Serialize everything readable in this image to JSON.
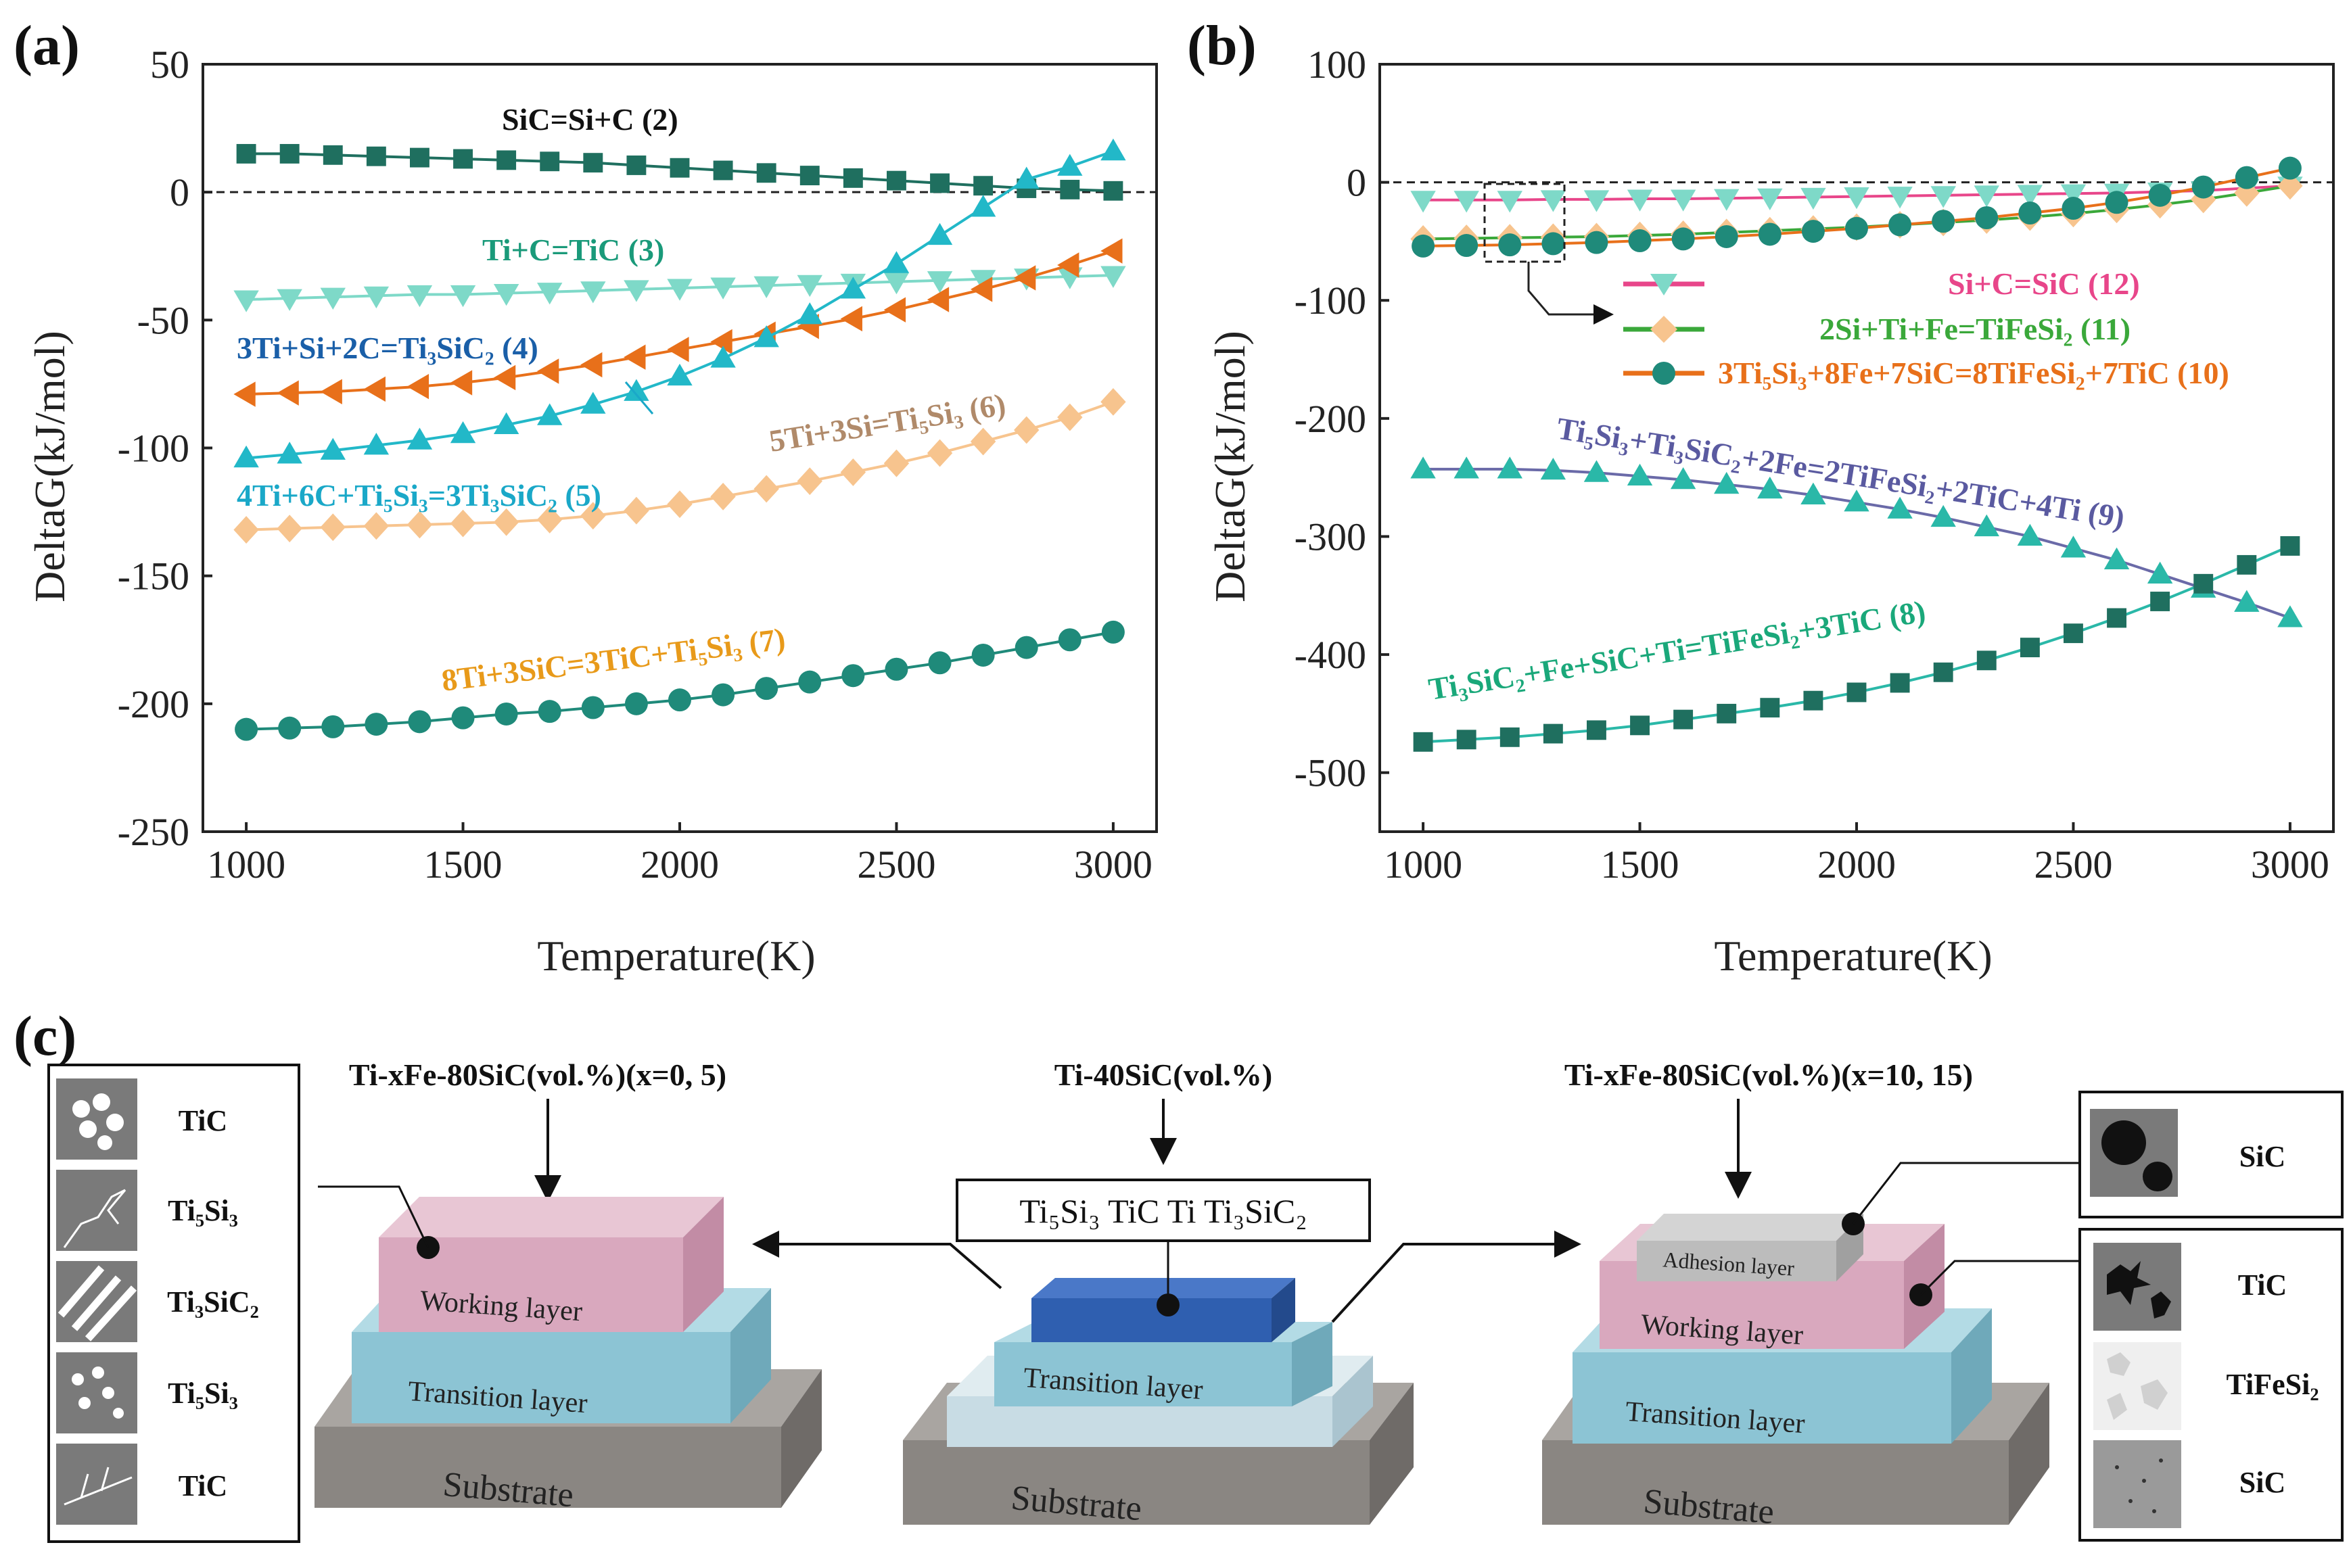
{
  "panels": {
    "a": "(a)",
    "b": "(b)",
    "c": "(c)"
  },
  "chart_data": [
    {
      "type": "line",
      "panel": "(a)",
      "xlabel": "Temperature(K)",
      "ylabel": "DeltaG(kJ/mol)",
      "xlim": [
        900,
        3100
      ],
      "ylim": [
        -250,
        50
      ],
      "xticks": [
        1000,
        1500,
        2000,
        2500,
        3000
      ],
      "yticks": [
        50,
        0,
        -50,
        -100,
        -150,
        -200,
        -250
      ],
      "x": [
        1000,
        1100,
        1200,
        1300,
        1400,
        1500,
        1600,
        1700,
        1800,
        1900,
        2000,
        2100,
        2200,
        2300,
        2400,
        2500,
        2600,
        2700,
        2800,
        2900,
        3000
      ],
      "zero_line": true,
      "series": [
        {
          "name": "SiC=Si+C (2)",
          "color": "#1f6f5f",
          "marker": "square",
          "values": [
            15,
            15,
            14.5,
            14,
            13.5,
            13,
            12.5,
            12,
            11.5,
            10.5,
            9.5,
            8.5,
            7.5,
            6.5,
            5.5,
            4.5,
            3.5,
            2.5,
            1.5,
            1,
            0.5
          ]
        },
        {
          "name": "Ti+C=TiC (3)",
          "color": "#7ed9c8",
          "marker": "triangle-down",
          "values": [
            -42,
            -41.5,
            -41,
            -40.5,
            -40,
            -40,
            -39.5,
            -39,
            -38.5,
            -38,
            -37.5,
            -37,
            -36.5,
            -36,
            -35.5,
            -35,
            -34.5,
            -34,
            -33.5,
            -33,
            -32.5
          ]
        },
        {
          "name": "3Ti+Si+2C=Ti₃SiC₂ (4)",
          "color": "#e8701a",
          "marker": "triangle-left",
          "values": [
            -79,
            -78.5,
            -78,
            -77,
            -76,
            -74.5,
            -72.5,
            -70,
            -67.5,
            -64.5,
            -61.5,
            -58.5,
            -55.5,
            -52.5,
            -49.5,
            -46,
            -42,
            -38,
            -33.5,
            -28.5,
            -23
          ]
        },
        {
          "name": "4Ti+6C+Ti₅Si₃=3Ti₃SiC₂ (5)",
          "color": "#22b8c8",
          "marker": "triangle-up",
          "values": [
            -104,
            -102.5,
            -101,
            -99,
            -97,
            -94.5,
            -91,
            -87.5,
            -83,
            -78,
            -72,
            -65,
            -57,
            -48,
            -38,
            -28,
            -17,
            -6,
            5,
            10,
            16
          ]
        },
        {
          "name": "5Ti+3Si=Ti₅Si₃ (6)",
          "color": "#f7c48e",
          "marker": "diamond",
          "values": [
            -132,
            -131.5,
            -131,
            -130.5,
            -130,
            -129.5,
            -129,
            -128,
            -126.5,
            -124.5,
            -122,
            -119,
            -116,
            -113,
            -109.5,
            -106,
            -102,
            -97.5,
            -93,
            -88,
            -82
          ]
        },
        {
          "name": "8Ti+3SiC=3TiC+Ti₅Si₃ (7)",
          "color": "#1f8a7a",
          "marker": "circle",
          "values": [
            -210,
            -209.5,
            -209,
            -208,
            -207,
            -205.5,
            -204,
            -203,
            -201.5,
            -200,
            -198.5,
            -196.5,
            -194,
            -191.5,
            -189,
            -186.5,
            -184,
            -181,
            -178,
            -175,
            -172
          ]
        }
      ],
      "annotations": [
        {
          "text": "SiC=Si+C (2)",
          "color": "#111111"
        },
        {
          "text": "Ti+C=TiC (3)",
          "color": "#1a9a7a"
        },
        {
          "text": "3Ti+Si+2C=Ti₃SiC₂ (4)",
          "color": "#1a5fa8"
        },
        {
          "text": "4Ti+6C+Ti₅Si₃=3Ti₃SiC₂ (5)",
          "color": "#1aa8c8"
        },
        {
          "text": "5Ti+3Si=Ti₅Si₃ (6)",
          "color": "#b08a6a"
        },
        {
          "text": "8Ti+3SiC=3TiC+Ti₅Si₃ (7)",
          "color": "#e89a1a"
        }
      ]
    },
    {
      "type": "line",
      "panel": "(b)",
      "xlabel": "Temperature(K)",
      "ylabel": "DeltaG(kJ/mol)",
      "xlim": [
        900,
        3100
      ],
      "ylim": [
        -550,
        100
      ],
      "xticks": [
        1000,
        1500,
        2000,
        2500,
        3000
      ],
      "yticks": [
        100,
        0,
        -100,
        -200,
        -300,
        -400,
        -500
      ],
      "x": [
        1000,
        1100,
        1200,
        1300,
        1400,
        1500,
        1600,
        1700,
        1800,
        1900,
        2000,
        2100,
        2200,
        2300,
        2400,
        2500,
        2600,
        2700,
        2800,
        2900,
        3000
      ],
      "zero_line": true,
      "series": [
        {
          "name": "Si+C=SiC (12)",
          "color": "#e8468a",
          "marker_color": "#7ed9c8",
          "marker": "triangle-down",
          "values": [
            -15,
            -15,
            -15,
            -14.5,
            -14.5,
            -14,
            -14,
            -13.5,
            -13,
            -12.5,
            -12,
            -11.5,
            -11,
            -10.5,
            -10,
            -9.5,
            -9,
            -8,
            -7,
            -5,
            -3
          ]
        },
        {
          "name": "2Si+Ti+Fe=TiFeSi₂ (11)",
          "color": "#3aa83a",
          "marker_color": "#f7c48e",
          "marker": "diamond",
          "values": [
            -48,
            -47.5,
            -47,
            -46.5,
            -46,
            -45,
            -44,
            -42.5,
            -41,
            -39.5,
            -38,
            -36,
            -34,
            -32,
            -29.5,
            -26.5,
            -23,
            -19,
            -14.5,
            -9,
            -3
          ]
        },
        {
          "name": "3Ti₅Si₃+8Fe+7SiC=8TiFeSi₂+7TiC (10)",
          "color": "#e8701a",
          "marker_color": "#1f8a7a",
          "marker": "circle",
          "values": [
            -54,
            -53.5,
            -53,
            -52,
            -51,
            -49.5,
            -48,
            -46,
            -44,
            -41.5,
            -39,
            -36,
            -33,
            -30,
            -26,
            -22,
            -17,
            -11,
            -4,
            4,
            12
          ]
        },
        {
          "name": "Ti₅Si₃+Ti₃SiC₂+2Fe=2TiFeSi₂+2TiC+4Ti (9)",
          "color": "#6a6aa8",
          "marker_color": "#2ab8a8",
          "marker": "triangle-up",
          "values": [
            -243,
            -243,
            -243,
            -244,
            -246,
            -249,
            -252,
            -256,
            -260,
            -265,
            -271,
            -277,
            -284,
            -292,
            -300,
            -310,
            -320,
            -332,
            -344,
            -356,
            -369
          ]
        },
        {
          "name": "Ti₃SiC₂+Fe+SiC+Ti=TiFeSi₂+3TiC (8)",
          "color": "#2ab8a8",
          "marker_color": "#1f6f5f",
          "marker": "square",
          "values": [
            -474,
            -472,
            -470,
            -467,
            -464,
            -460,
            -455,
            -450,
            -445,
            -439,
            -432,
            -424,
            -415,
            -405,
            -394,
            -382,
            -369,
            -355,
            -340,
            -324,
            -308
          ]
        }
      ],
      "legend": [
        {
          "text": "Si+C=SiC (12)",
          "color": "#e8468a"
        },
        {
          "text": "2Si+Ti+Fe=TiFeSi₂ (11)",
          "color": "#3aa83a"
        },
        {
          "text": "3Ti₅Si₃+8Fe+7SiC=8TiFeSi₂+7TiC (10)",
          "color": "#e8701a"
        }
      ],
      "annotations": [
        {
          "text": "Ti₅Si₃+Ti₃SiC₂+2Fe=2TiFeSi₂+2TiC+4Ti (9)",
          "color": "#5a5aa0"
        },
        {
          "text": "Ti₃SiC₂+Fe+SiC+Ti=TiFeSi₂+3TiC (8)",
          "color": "#1aa87a"
        }
      ]
    }
  ],
  "diagram": {
    "left_title": "Ti-xFe-80SiC(vol.%)(x=0, 5)",
    "center_title": "Ti-40SiC(vol.%)",
    "right_title": "Ti-xFe-80SiC(vol.%)(x=10, 15)",
    "center_phases": "Ti₅Si₃  TiC  Ti  Ti₃SiC₂",
    "left_legend": [
      "TiC",
      "Ti₅Si₃",
      "Ti₃SiC₂",
      "Ti₅Si₃",
      "TiC"
    ],
    "right_top_legend": [
      "SiC"
    ],
    "right_bottom_legend": [
      "TiC",
      "TiFeSi₂",
      "SiC"
    ],
    "layers": {
      "working": "Working layer",
      "transition": "Transition layer",
      "substrate": "Substrate",
      "adhesion": "Adhesion layer"
    },
    "colors": {
      "working": "#d9a8be",
      "transition": "#8cc4d4",
      "substrate": "#8a8682",
      "adhesion": "#bcbcbc",
      "coating_blue": "#2f5fb0",
      "pale_layer": "#c8dce4"
    }
  }
}
